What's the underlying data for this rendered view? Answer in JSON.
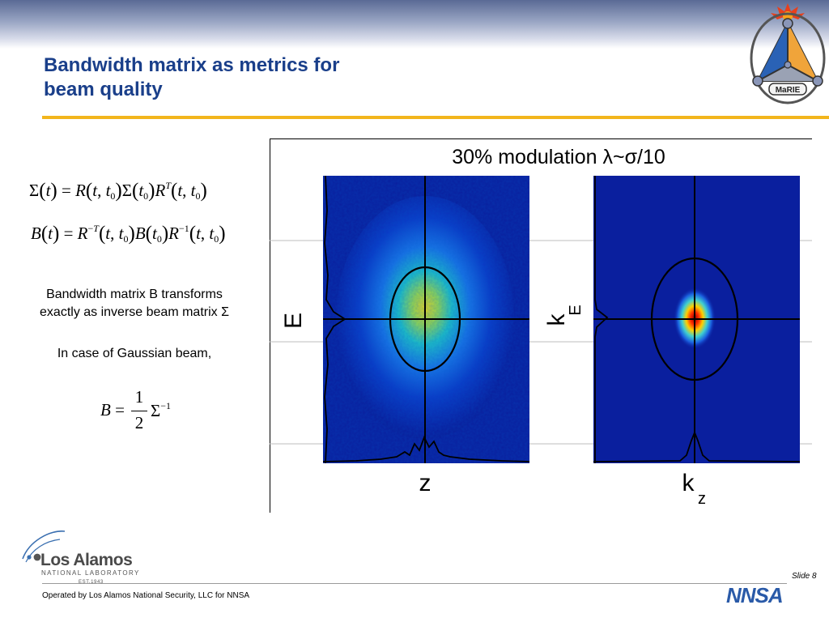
{
  "slide": {
    "title_line1": "Bandwidth matrix as metrics for",
    "title_line2": "beam quality",
    "logo_label": "MaRIE",
    "slide_number": "Slide 8",
    "footer_text": "Operated by Los Alamos National Security, LLC for NNSA"
  },
  "equations": {
    "sigma_transform": "Σ(t) = R(t,t0)Σ(t0)R^T(t,t0)",
    "bandwidth_transform": "B(t) = R^-T(t,t0)B(t0)R^-1(t,t0)",
    "gaussian_relation": "B = 1/2 Σ^-1",
    "fraction_numerator": "1",
    "fraction_denominator": "2"
  },
  "text": {
    "para1_line1": "Bandwidth matrix B transforms",
    "para1_line2": "exactly as inverse beam matrix Σ",
    "para2": "In case of Gaussian beam,"
  },
  "figure": {
    "title": "30% modulation λ~σ/10",
    "left_panel": {
      "xlabel": "z",
      "ylabel": "E"
    },
    "right_panel": {
      "xlabel": "k",
      "xlabel_sub": "z",
      "ylabel": "k",
      "ylabel_sub": "E"
    }
  },
  "lanl": {
    "name": "Los Alamos",
    "subtitle": "NATIONAL LABORATORY",
    "established": "EST.1943"
  },
  "nnsa": {
    "label": "NNSA"
  },
  "colors": {
    "title_blue": "#1a3f8a",
    "rule_gold": "#f2b51c",
    "panel_blue": "#0a1f9e"
  }
}
